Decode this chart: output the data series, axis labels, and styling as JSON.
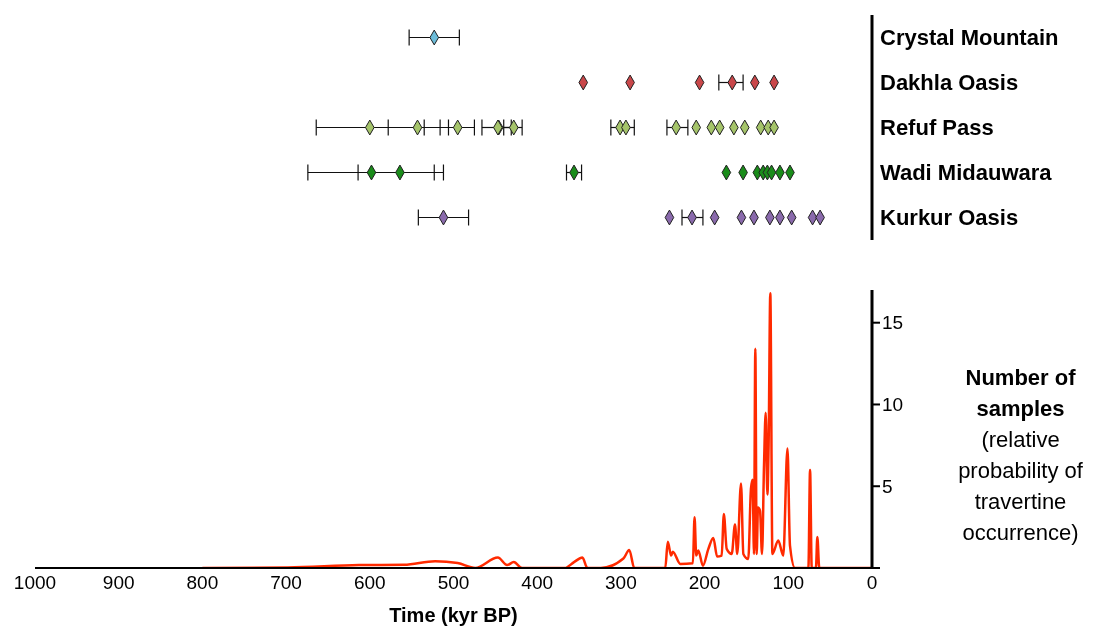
{
  "chart_data": [
    {
      "type": "scatter",
      "orientation": "horizontal",
      "categories": [
        "Crystal Mountain",
        "Dakhla Oasis",
        "Refuf Pass",
        "Wadi Midauwara",
        "Kurkur Oasis"
      ],
      "xlim": [
        1000,
        0
      ],
      "tick_labels": "y",
      "marker": "diamond",
      "legend": false,
      "grid": false,
      "series": [
        {
          "color": "#6cbcd9",
          "x": [
            "Crystal Mountain"
          ],
          "values": [
            523
          ],
          "errors": [
            30
          ]
        },
        {
          "color": "#c9474a",
          "x": [
            "Dakhla Oasis",
            "Dakhla Oasis",
            "Dakhla Oasis",
            "Dakhla Oasis",
            "Dakhla Oasis",
            "Dakhla Oasis"
          ],
          "values": [
            345,
            289,
            206,
            167,
            140,
            117
          ],
          "errors": [
            null,
            null,
            null,
            [
              154,
              183
            ],
            null,
            null
          ]
        },
        {
          "color": "#a5c46a",
          "x": [
            "Refuf Pass",
            "Refuf Pass",
            "Refuf Pass",
            "Refuf Pass",
            "Refuf Pass",
            "Refuf Pass",
            "Refuf Pass",
            "Refuf Pass",
            "Refuf Pass",
            "Refuf Pass",
            "Refuf Pass",
            "Refuf Pass",
            "Refuf Pass",
            "Refuf Pass",
            "Refuf Pass",
            "Refuf Pass",
            "Refuf Pass"
          ],
          "values": [
            495,
            446,
            543,
            428,
            600,
            447,
            301,
            294,
            234,
            210,
            192,
            182,
            165,
            152,
            133,
            124,
            117
          ],
          "errors": [
            [
              475,
              516
            ],
            [
              431,
              466
            ],
            [
              506,
              578
            ],
            [
              418,
              440
            ],
            [
              535,
              664
            ],
            null,
            [
              284,
              312
            ],
            null,
            [
              220,
              245
            ],
            null,
            null,
            null,
            null,
            null,
            null,
            null,
            null
          ]
        },
        {
          "color": "#1a8c1a",
          "x": [
            "Wadi Midauwara",
            "Wadi Midauwara",
            "Wadi Midauwara",
            "Wadi Midauwara",
            "Wadi Midauwara",
            "Wadi Midauwara",
            "Wadi Midauwara",
            "Wadi Midauwara",
            "Wadi Midauwara",
            "Wadi Midauwara",
            "Wadi Midauwara"
          ],
          "values": [
            598,
            564,
            356,
            174,
            154,
            137,
            130,
            125,
            120,
            110,
            98
          ],
          "errors": [
            [
              512,
              674
            ],
            [
              523,
              614
            ],
            [
              347,
              365
            ],
            null,
            null,
            null,
            null,
            null,
            null,
            null,
            null
          ]
        },
        {
          "color": "#8a6aac",
          "x": [
            "Kurkur Oasis",
            "Kurkur Oasis",
            "Kurkur Oasis",
            "Kurkur Oasis",
            "Kurkur Oasis",
            "Kurkur Oasis",
            "Kurkur Oasis",
            "Kurkur Oasis",
            "Kurkur Oasis",
            "Kurkur Oasis",
            "Kurkur Oasis"
          ],
          "values": [
            512,
            242,
            215,
            188,
            156,
            141,
            122,
            110,
            96,
            71,
            62
          ],
          "errors": [
            [
              482,
              542
            ],
            null,
            [
              202,
              227
            ],
            null,
            null,
            null,
            null,
            null,
            null,
            null,
            null
          ]
        }
      ]
    },
    {
      "type": "line",
      "xlabel": "Time (kyr BP)",
      "ylabel": "Number of samples",
      "annotations": [
        "(relative probability of travertine occurrence)"
      ],
      "xlim": [
        1000,
        0
      ],
      "xticks": [
        1000,
        900,
        800,
        700,
        600,
        500,
        400,
        300,
        200,
        100,
        0
      ],
      "ylim": [
        0,
        17
      ],
      "yticks": [
        {
          "value": 0,
          "label": null
        },
        5,
        10,
        15
      ],
      "marker": "none",
      "line_style": "solid",
      "legend": false,
      "grid": false,
      "series": [
        {
          "color": "#ff2a00",
          "x": [
            800,
            698,
            613,
            559,
            522,
            495,
            474,
            447,
            436,
            428,
            418,
            367,
            356,
            346,
            340,
            324,
            297,
            290,
            284,
            247,
            244,
            240,
            238,
            229,
            214,
            212,
            210,
            207.5,
            202,
            195.5,
            189.6,
            185,
            179.6,
            177,
            173.6,
            167.6,
            163.7,
            161,
            156.5,
            153.7,
            147.8,
            144.6,
            142.6,
            141,
            139.4,
            137.8,
            136.2,
            133.8,
            131.4,
            129,
            127,
            125,
            123.5,
            121.5,
            119,
            112,
            106,
            101,
            98,
            92,
            76,
            74,
            72,
            67,
            65.3,
            63,
            0
          ],
          "values": [
            0,
            0.03,
            0.18,
            0.2,
            0.42,
            0.3,
            0,
            0.64,
            0.18,
            0.36,
            0,
            0,
            0.36,
            0.64,
            0,
            0,
            0.58,
            1.1,
            0,
            0,
            1.6,
            0.76,
            1.0,
            0.25,
            0.29,
            3.1,
            0.76,
            1.07,
            0.14,
            1.17,
            1.84,
            0.7,
            0.76,
            3.3,
            1.17,
            0.86,
            2.66,
            0.86,
            5.16,
            0.86,
            0.55,
            4.86,
            5.4,
            0.86,
            13.4,
            0.86,
            3.7,
            3.5,
            0.86,
            6.3,
            9.5,
            4.5,
            7.6,
            16.8,
            0.86,
            1.68,
            0.76,
            7.3,
            1.37,
            0,
            0,
            6.0,
            0,
            0,
            1.9,
            0,
            0
          ]
        }
      ]
    }
  ]
}
